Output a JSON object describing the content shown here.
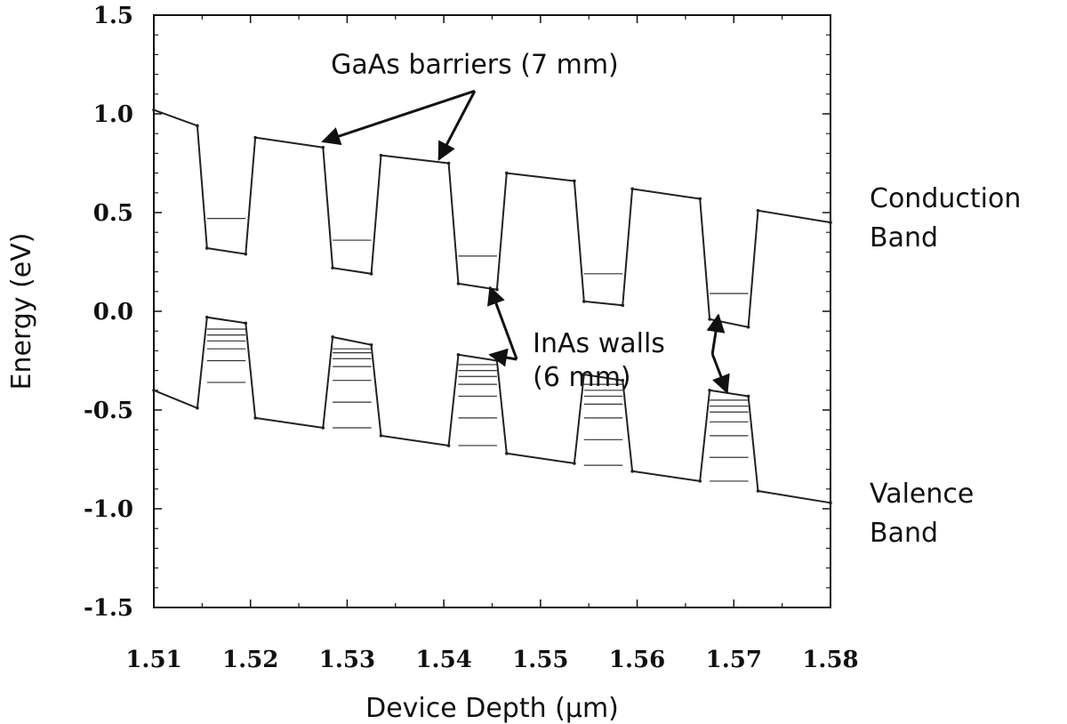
{
  "chart_data": {
    "type": "line",
    "title": "",
    "xlabel": "Device Depth (μm)",
    "ylabel": "Energy (eV)",
    "xlim": [
      1.51,
      1.58
    ],
    "ylim": [
      -1.5,
      1.5
    ],
    "x_ticks": [
      "1.51",
      "1.52",
      "1.53",
      "1.54",
      "1.55",
      "1.56",
      "1.57",
      "1.58"
    ],
    "y_ticks": [
      "1.5",
      "1.0",
      "0.5",
      "0.0",
      "-0.5",
      "-1.0",
      "-1.5"
    ],
    "grid": false,
    "series": [
      {
        "name": "Conduction Band",
        "points": [
          [
            1.51,
            1.02
          ],
          [
            1.5145,
            0.94
          ],
          [
            1.5155,
            0.32
          ],
          [
            1.5195,
            0.29
          ],
          [
            1.5205,
            0.88
          ],
          [
            1.5275,
            0.83
          ],
          [
            1.5285,
            0.22
          ],
          [
            1.5325,
            0.19
          ],
          [
            1.5335,
            0.79
          ],
          [
            1.5405,
            0.75
          ],
          [
            1.5415,
            0.14
          ],
          [
            1.5455,
            0.11
          ],
          [
            1.5465,
            0.7
          ],
          [
            1.5535,
            0.66
          ],
          [
            1.5545,
            0.05
          ],
          [
            1.5585,
            0.03
          ],
          [
            1.5595,
            0.62
          ],
          [
            1.5665,
            0.57
          ],
          [
            1.5675,
            -0.04
          ],
          [
            1.5715,
            -0.08
          ],
          [
            1.5725,
            0.51
          ],
          [
            1.58,
            0.45
          ]
        ]
      },
      {
        "name": "Valence Band",
        "points": [
          [
            1.51,
            -0.4
          ],
          [
            1.5145,
            -0.49
          ],
          [
            1.5155,
            -0.03
          ],
          [
            1.5195,
            -0.06
          ],
          [
            1.5205,
            -0.54
          ],
          [
            1.5275,
            -0.59
          ],
          [
            1.5285,
            -0.13
          ],
          [
            1.5325,
            -0.17
          ],
          [
            1.5335,
            -0.63
          ],
          [
            1.5405,
            -0.68
          ],
          [
            1.5415,
            -0.22
          ],
          [
            1.5455,
            -0.25
          ],
          [
            1.5465,
            -0.72
          ],
          [
            1.5535,
            -0.77
          ],
          [
            1.5545,
            -0.32
          ],
          [
            1.5585,
            -0.35
          ],
          [
            1.5595,
            -0.81
          ],
          [
            1.5665,
            -0.86
          ],
          [
            1.5675,
            -0.4
          ],
          [
            1.5715,
            -0.43
          ],
          [
            1.5725,
            -0.91
          ],
          [
            1.58,
            -0.97
          ]
        ]
      }
    ],
    "conduction_levels": [
      {
        "x0": 1.5155,
        "x1": 1.5195,
        "y": 0.47
      },
      {
        "x0": 1.5285,
        "x1": 1.5325,
        "y": 0.36
      },
      {
        "x0": 1.5415,
        "x1": 1.5455,
        "y": 0.28
      },
      {
        "x0": 1.5545,
        "x1": 1.5585,
        "y": 0.19
      },
      {
        "x0": 1.5675,
        "x1": 1.5715,
        "y": 0.09
      }
    ],
    "valence_levels": [
      {
        "x0": 1.5155,
        "x1": 1.5195,
        "y": [
          -0.09,
          -0.12,
          -0.15,
          -0.19,
          -0.25,
          -0.36
        ]
      },
      {
        "x0": 1.5285,
        "x1": 1.5325,
        "y": [
          -0.19,
          -0.21,
          -0.24,
          -0.28,
          -0.35,
          -0.46,
          -0.59
        ]
      },
      {
        "x0": 1.5415,
        "x1": 1.5455,
        "y": [
          -0.27,
          -0.3,
          -0.33,
          -0.37,
          -0.43,
          -0.54,
          -0.68
        ]
      },
      {
        "x0": 1.5545,
        "x1": 1.5585,
        "y": [
          -0.37,
          -0.4,
          -0.43,
          -0.47,
          -0.54,
          -0.65,
          -0.78
        ]
      },
      {
        "x0": 1.5675,
        "x1": 1.5715,
        "y": [
          -0.45,
          -0.48,
          -0.51,
          -0.56,
          -0.63,
          -0.74,
          -0.86
        ]
      }
    ],
    "annotations": [
      {
        "text": "GaAs barriers (7 mm)",
        "anchor": [
          1.5432,
          1.17
        ],
        "targets": [
          [
            1.5275,
            0.86
          ],
          [
            1.5395,
            0.77
          ]
        ]
      },
      {
        "text_lines": [
          "InAs walls",
          "(6 mm)"
        ],
        "anchor": [
          1.5492,
          -0.09
        ],
        "targets_from_left": [
          [
            1.5448,
            0.12
          ],
          [
            1.5448,
            -0.22
          ]
        ],
        "targets_from_right": [
          [
            1.5684,
            -0.02
          ],
          [
            1.5693,
            -0.41
          ]
        ]
      }
    ],
    "band_labels": [
      {
        "lines": [
          "Conduction",
          "Band"
        ],
        "position": "right, upper"
      },
      {
        "lines": [
          "Valence",
          "Band"
        ],
        "position": "right, lower"
      }
    ]
  }
}
